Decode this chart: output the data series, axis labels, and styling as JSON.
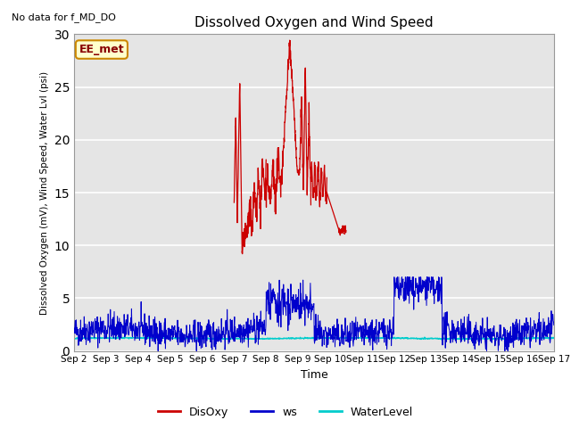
{
  "title": "Dissolved Oxygen and Wind Speed",
  "ylabel": "Dissolved Oxygen (mV), Wind Speed, Water Lvl (psi)",
  "xlabel": "Time",
  "top_left_text": "No data for f_MD_DO",
  "annotation_box": "EE_met",
  "ylim": [
    0,
    30
  ],
  "yticks": [
    0,
    5,
    10,
    15,
    20,
    25,
    30
  ],
  "xtick_labels": [
    "Sep 2",
    "Sep 3",
    "Sep 4",
    "Sep 5",
    "Sep 6",
    "Sep 7",
    "Sep 8",
    "Sep 9",
    "Sep 10",
    "Sep 11",
    "Sep 12",
    "Sep 13",
    "Sep 14",
    "Sep 15",
    "Sep 16",
    "Sep 17"
  ],
  "bg_color": "#e5e5e5",
  "grid_color": "white",
  "disoxy_color": "#cc0000",
  "ws_color": "#0000cc",
  "waterlevel_color": "#00cccc",
  "legend_labels": [
    "DisOxy",
    "ws",
    "WaterLevel"
  ],
  "figsize": [
    6.4,
    4.8
  ],
  "dpi": 100
}
